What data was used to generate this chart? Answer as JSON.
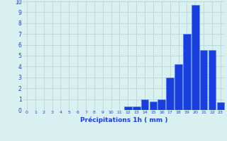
{
  "hours": [
    0,
    1,
    2,
    3,
    4,
    5,
    6,
    7,
    8,
    9,
    10,
    11,
    12,
    13,
    14,
    15,
    16,
    17,
    18,
    19,
    20,
    21,
    22,
    23
  ],
  "values": [
    0,
    0,
    0,
    0,
    0,
    0,
    0,
    0,
    0,
    0,
    0,
    0,
    0.3,
    0.3,
    1.0,
    0.8,
    1.0,
    3.0,
    4.2,
    7.0,
    9.7,
    5.5,
    5.5,
    0.7
  ],
  "bar_color": "#1a3ede",
  "bar_edge_color": "#4488ff",
  "background_color": "#d8f0f0",
  "grid_color": "#b8cece",
  "xlabel": "Précipitations 1h ( mm )",
  "xlabel_color": "#1a3ede",
  "tick_color": "#1a3ede",
  "ylim": [
    0,
    10
  ],
  "xlim": [
    -0.5,
    23.5
  ],
  "yticks": [
    0,
    1,
    2,
    3,
    4,
    5,
    6,
    7,
    8,
    9,
    10
  ],
  "xticks": [
    0,
    1,
    2,
    3,
    4,
    5,
    6,
    7,
    8,
    9,
    10,
    11,
    12,
    13,
    14,
    15,
    16,
    17,
    18,
    19,
    20,
    21,
    22,
    23
  ]
}
